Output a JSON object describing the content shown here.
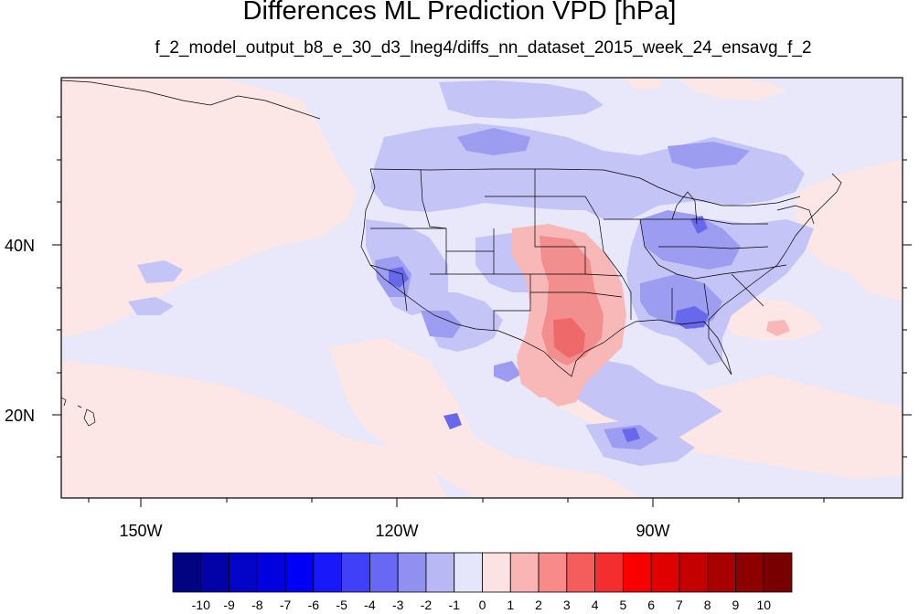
{
  "title": "Differences ML Prediction VPD [hPa]",
  "subtitle": "f_2_model_output_b8_e_30_d3_lneg4/diffs_nn_dataset_2015_week_24_ensavg_f_2",
  "lat_labels": [
    "40N",
    "20N"
  ],
  "lon_labels": [
    "150W",
    "120W",
    "90W"
  ],
  "colorbar": {
    "labels": [
      "-10",
      "-9",
      "-8",
      "-7",
      "-6",
      "-5",
      "-4",
      "-3",
      "-2",
      "-1",
      "0",
      "1",
      "2",
      "3",
      "4",
      "5",
      "6",
      "7",
      "8",
      "9",
      "10"
    ],
    "colors": [
      "#020380",
      "#0202a8",
      "#0404c8",
      "#0000e0",
      "#0000f6",
      "#1818fa",
      "#4040f8",
      "#6868f4",
      "#9090f0",
      "#b8b8f4",
      "#e6e6fa",
      "#fce2e2",
      "#fbb4b4",
      "#f88a8a",
      "#f55c5c",
      "#f42e2e",
      "#f80000",
      "#e00000",
      "#c40000",
      "#a80000",
      "#8e0000",
      "#780000"
    ]
  },
  "map_colors": {
    "background": "#e8e8fa",
    "light_pink": "#fce6e6",
    "light_blue": "#c4c4f6",
    "mid_blue": "#9c9cf0",
    "deep_blue": "#6868ec",
    "pink": "#f8b8b8",
    "red": "#f28e8e",
    "deep_red": "#ee6a6a"
  }
}
